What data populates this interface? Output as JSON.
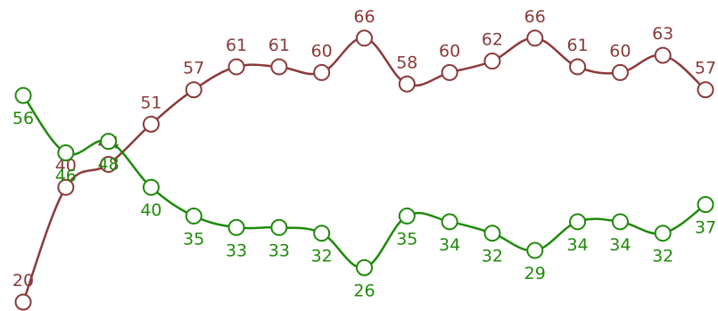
{
  "chart_data": {
    "type": "line",
    "title": "",
    "xlabel": "",
    "ylabel": "",
    "x": [
      1,
      2,
      3,
      4,
      5,
      6,
      7,
      8,
      9,
      10,
      11,
      12,
      13,
      14,
      15,
      16,
      17
    ],
    "ylim": [
      15,
      70
    ],
    "grid": false,
    "legend": "none",
    "series": [
      {
        "color": "#8b3a3a",
        "label_position": "above",
        "values": [
          20,
          40,
          44,
          51,
          57,
          61,
          61,
          60,
          66,
          58,
          60,
          62,
          66,
          61,
          60,
          63,
          57
        ]
      },
      {
        "color": "#1f8a0a",
        "label_position": "below",
        "values": [
          56,
          46,
          48,
          40,
          35,
          33,
          33,
          32,
          26,
          35,
          34,
          32,
          29,
          34,
          34,
          32,
          37
        ]
      }
    ]
  }
}
